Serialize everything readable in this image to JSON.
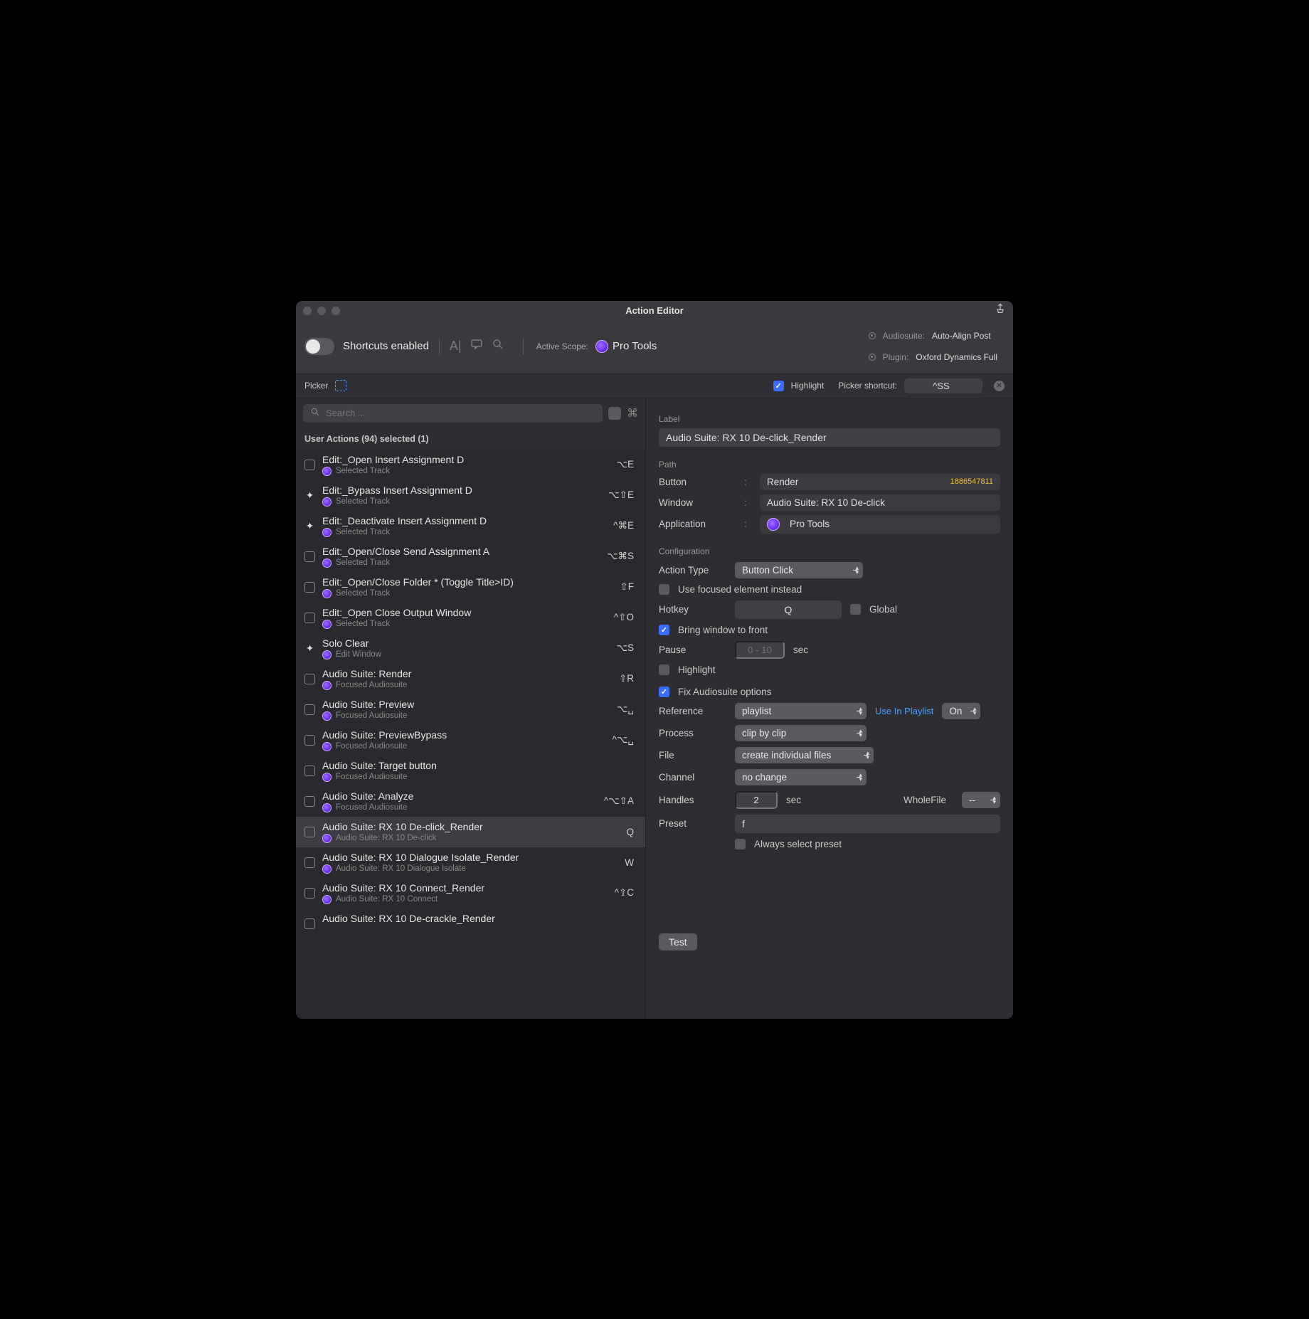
{
  "window": {
    "title": "Action Editor"
  },
  "toolbar": {
    "shortcuts_label": "Shortcuts enabled",
    "active_scope_label": "Active Scope:",
    "app_name": "Pro Tools",
    "audiosuite_label": "Audiosuite:",
    "audiosuite_value": "Auto-Align Post",
    "plugin_label": "Plugin:",
    "plugin_value": "Oxford Dynamics Full"
  },
  "pickerbar": {
    "picker_label": "Picker",
    "highlight_label": "Highlight",
    "picker_shortcut_label": "Picker shortcut:",
    "picker_shortcut_value": "^SS"
  },
  "search": {
    "placeholder": "Search ..."
  },
  "list_header": "User Actions (94) selected (1)",
  "actions": [
    {
      "name": "Edit:_Open Insert Assignment D",
      "sub": "Selected Track",
      "sc": "⌥E",
      "icon": "cb"
    },
    {
      "name": "Edit:_Bypass Insert Assignment D",
      "sub": "Selected Track",
      "sc": "⌥⇧E",
      "icon": "spark"
    },
    {
      "name": "Edit:_Deactivate Insert Assignment D",
      "sub": "Selected Track",
      "sc": "^⌘E",
      "icon": "spark"
    },
    {
      "name": "Edit:_Open/Close Send Assignment A",
      "sub": "Selected Track",
      "sc": "⌥⌘S",
      "icon": "cb"
    },
    {
      "name": "Edit:_Open/Close Folder * (Toggle Title>ID)",
      "sub": "Selected Track",
      "sc": "⇧F",
      "icon": "cb"
    },
    {
      "name": "Edit:_Open Close Output Window",
      "sub": "Selected Track",
      "sc": "^⇧O",
      "icon": "cb"
    },
    {
      "name": "Solo Clear",
      "sub": "Edit Window",
      "sc": "⌥S",
      "icon": "spark"
    },
    {
      "name": "Audio Suite:  Render",
      "sub": "Focused Audiosuite",
      "sc": "⇧R",
      "icon": "cb"
    },
    {
      "name": "Audio Suite: Preview",
      "sub": "Focused Audiosuite",
      "sc": "⌥␣",
      "icon": "cb"
    },
    {
      "name": "Audio Suite: PreviewBypass",
      "sub": "Focused Audiosuite",
      "sc": "^⌥␣",
      "icon": "cb"
    },
    {
      "name": "Audio Suite: Target button",
      "sub": "Focused Audiosuite",
      "sc": "",
      "icon": "cb"
    },
    {
      "name": "Audio Suite: Analyze",
      "sub": "Focused Audiosuite",
      "sc": "^⌥⇧A",
      "icon": "cb"
    },
    {
      "name": "Audio Suite: RX 10 De-click_Render",
      "sub": "Audio Suite: RX 10 De-click",
      "sc": "Q",
      "icon": "cb",
      "selected": true
    },
    {
      "name": "Audio Suite: RX 10 Dialogue Isolate_Render",
      "sub": "Audio Suite: RX 10 Dialogue Isolate",
      "sc": "W",
      "icon": "cb"
    },
    {
      "name": "Audio Suite: RX 10 Connect_Render",
      "sub": "Audio Suite: RX 10 Connect",
      "sc": "^⇧C",
      "icon": "cb"
    },
    {
      "name": "Audio Suite: RX 10 De-crackle_Render",
      "sub": "",
      "sc": "",
      "icon": "cb"
    }
  ],
  "detail": {
    "label_heading": "Label",
    "label_value": "Audio Suite: RX 10 De-click_Render",
    "path_heading": "Path",
    "path": {
      "button_label": "Button",
      "button_value": "Render",
      "button_id": "1886547811",
      "window_label": "Window",
      "window_value": "Audio Suite: RX 10 De-click",
      "application_label": "Application",
      "application_value": "Pro Tools"
    },
    "config_heading": "Configuration",
    "action_type_label": "Action Type",
    "action_type_value": "Button Click",
    "use_focused_label": "Use focused element instead",
    "hotkey_label": "Hotkey",
    "hotkey_value": "Q",
    "global_label": "Global",
    "bring_front_label": "Bring window to front",
    "pause_label": "Pause",
    "pause_placeholder": "0 - 10",
    "pause_unit": "sec",
    "highlight_label": "Highlight",
    "fix_audiosuite_label": "Fix Audiosuite options",
    "reference_label": "Reference",
    "reference_value": "playlist",
    "use_in_playlist_label": "Use In Playlist",
    "on_value": "On",
    "process_label": "Process",
    "process_value": "clip by clip",
    "file_label": "File",
    "file_value": "create individual files",
    "channel_label": "Channel",
    "channel_value": "no change",
    "handles_label": "Handles",
    "handles_value": "2",
    "handles_unit": "sec",
    "wholefile_label": "WholeFile",
    "wholefile_value": "--",
    "preset_label": "Preset",
    "preset_value": "f",
    "always_select_label": "Always select preset",
    "test_label": "Test"
  },
  "colors": {
    "bg": "#303034",
    "panel": "#2a2a2e",
    "field": "#404046",
    "select": "#5a5a60",
    "accent_blue": "#4aa0ff",
    "accent_check": "#3a6cff",
    "accent_id": "#e8c030"
  }
}
